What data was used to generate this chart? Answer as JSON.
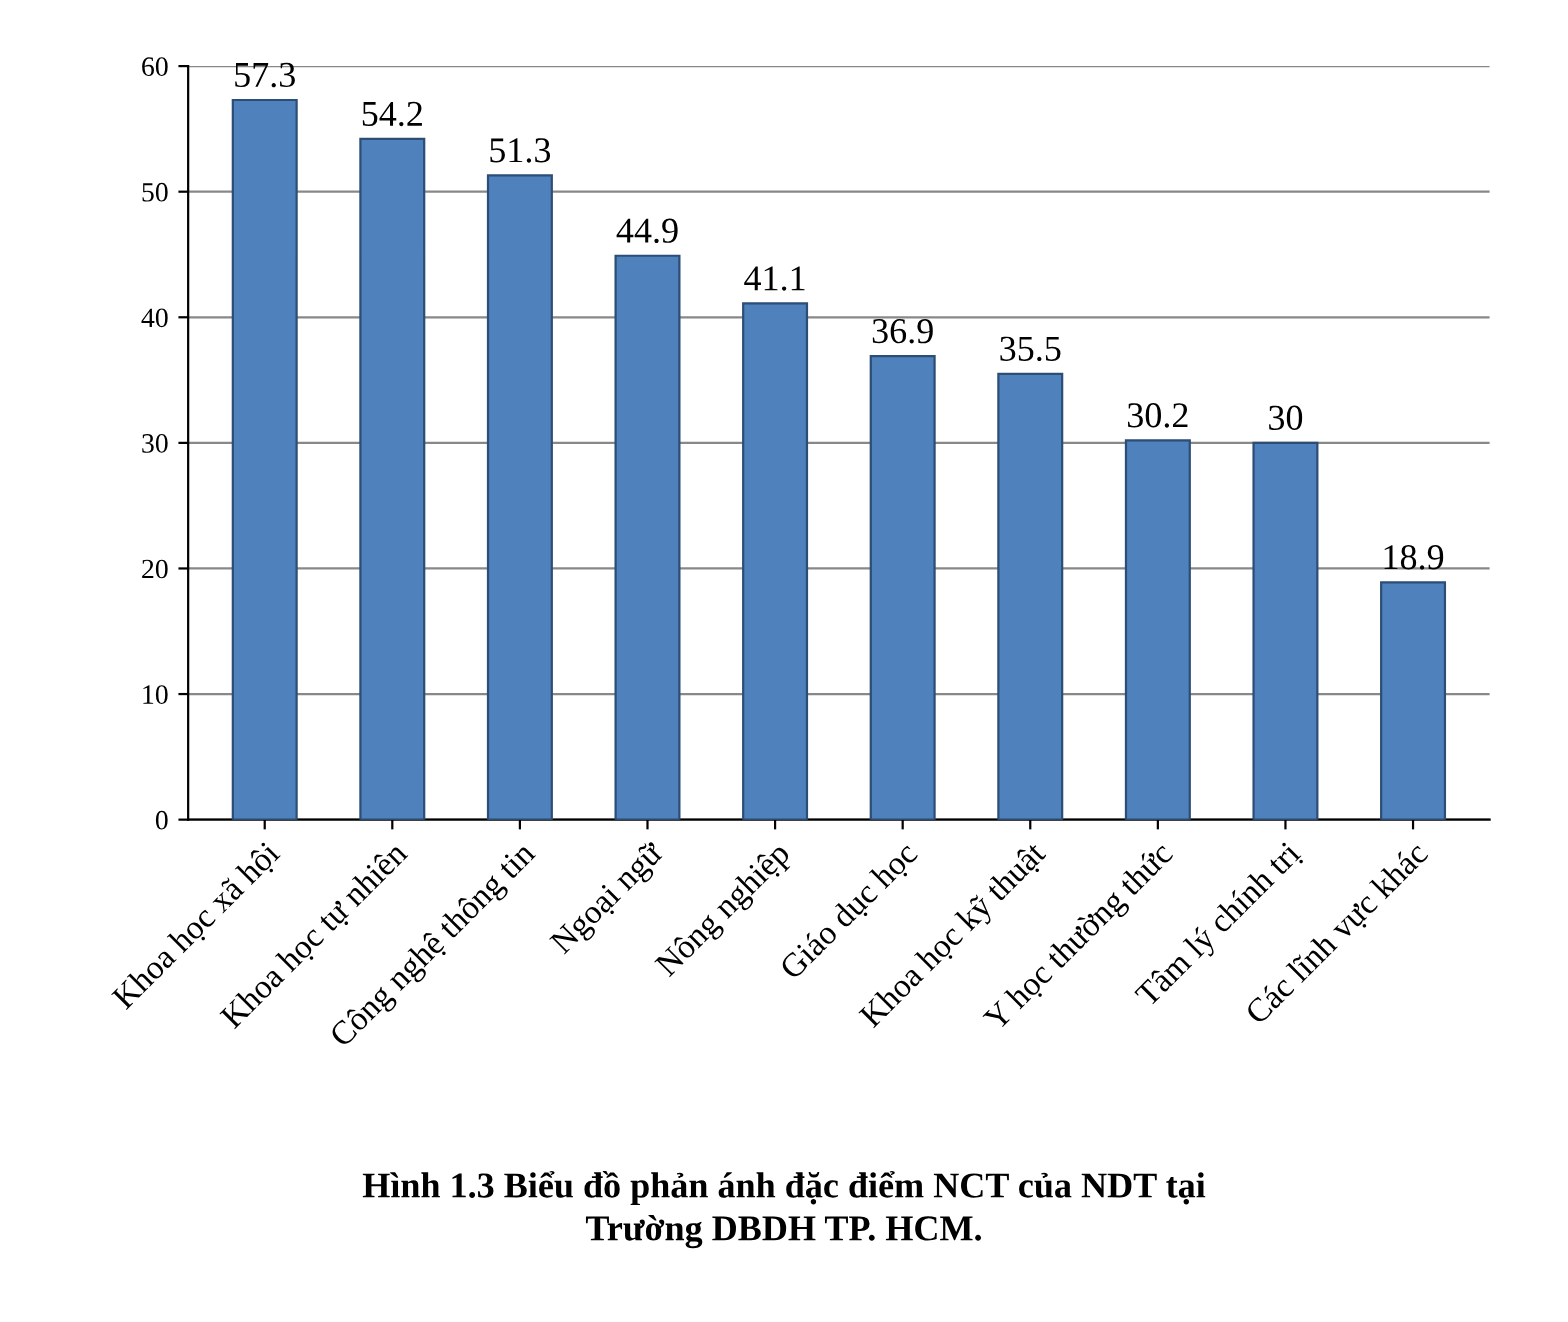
{
  "chart_data": {
    "type": "bar",
    "categories": [
      "Khoa học xã hội",
      "Khoa học tự nhiên",
      "Công nghệ thông tin",
      "Ngoại ngữ",
      "Nông nghiệp",
      "Giáo dục học",
      "Khoa học kỹ thuật",
      "Y học thường thức",
      "Tâm lý chính trị",
      "Các lĩnh vực khác"
    ],
    "values": [
      57.3,
      54.2,
      51.3,
      44.9,
      41.1,
      36.9,
      35.5,
      30.2,
      30,
      18.9
    ],
    "color": "#4f81bd",
    "ylim": [
      0,
      60
    ],
    "yticks": [
      0,
      10,
      20,
      30,
      40,
      50,
      60
    ],
    "grid": "y",
    "data_labels": true,
    "annotations": [
      "Hình 1.3 Biểu đồ phản ánh đặc điểm NCT của NDT tại\nTrường DBDH TP. HCM."
    ]
  }
}
